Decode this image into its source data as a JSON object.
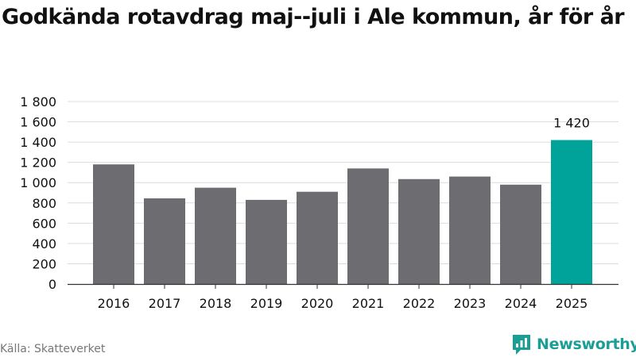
{
  "title": "Godkända rotavdrag maj--juli i Ale kommun, år för år",
  "source": "Källa: Skatteverket",
  "brand": {
    "name": "Newsworthy",
    "icon": "newsworthy-logo-icon",
    "color": "#1a9e96"
  },
  "colors": {
    "bar": "#6d6c71",
    "highlight": "#00a39a",
    "grid": "#dcdcdc",
    "axis": "#333333"
  },
  "chart_data": {
    "type": "bar",
    "title": "Godkända rotavdrag maj--juli i Ale kommun, år för år",
    "xlabel": "",
    "ylabel": "",
    "categories": [
      "2016",
      "2017",
      "2018",
      "2019",
      "2020",
      "2021",
      "2022",
      "2023",
      "2024",
      "2025"
    ],
    "values": [
      1180,
      845,
      950,
      830,
      910,
      1140,
      1035,
      1060,
      980,
      1420
    ],
    "ylim": [
      0,
      1800
    ],
    "yticks": [
      0,
      200,
      400,
      600,
      800,
      1000,
      1200,
      1400,
      1600,
      1800
    ],
    "ytick_labels": [
      "0",
      "200",
      "400",
      "600",
      "800",
      "1 000",
      "1 200",
      "1 400",
      "1 600",
      "1 800"
    ],
    "grid": true,
    "highlight_index": 9,
    "data_labels": [
      {
        "index": 9,
        "text": "1 420"
      }
    ]
  }
}
